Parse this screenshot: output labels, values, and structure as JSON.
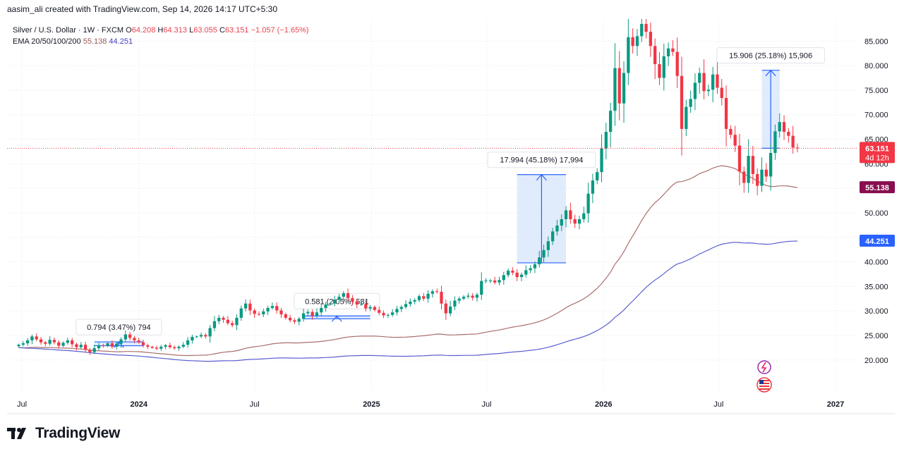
{
  "header": {
    "text": "aasim_ali created with TradingView.com, Sep 14, 2026 14:17 UTC+5:30"
  },
  "legend": {
    "symbol": "Silver / U.S. Dollar · 1W · FXCM",
    "o_label": "O",
    "o_value": "64.208",
    "h_label": "H",
    "h_value": "64.313",
    "l_label": "L",
    "l_value": "63.055",
    "c_label": "C",
    "c_value": "63.151",
    "change": "−1.057 (−1.65%)",
    "ema_label": "EMA 20/50/100/200",
    "ema_value_1": "55.138",
    "ema_value_2": "44.251"
  },
  "brand": {
    "name": "TradingView"
  },
  "colors": {
    "up": "#089981",
    "down": "#f23645",
    "ema1": "#a9706e",
    "ema2": "#5b5fd0",
    "measure_fill": "#dbe7fb",
    "measure_line": "#2962ff",
    "grid": "#eef0f3",
    "price_line": "#e8424f"
  },
  "chart_data": {
    "type": "candlestick",
    "y_axis": {
      "range": [
        13.5,
        89.5
      ],
      "ticks": [
        "20.000",
        "25.000",
        "30.000",
        "35.000",
        "40.000",
        "45.000",
        "50.000",
        "55.000",
        "60.000",
        "65.000",
        "70.000",
        "75.000",
        "80.000",
        "85.000"
      ]
    },
    "x_axis": {
      "labels": [
        "Jul",
        "2024",
        "Jul",
        "2025",
        "Jul",
        "2026",
        "Jul",
        "2027"
      ],
      "label_dates": [
        "2023-07-01",
        "2024-01-01",
        "2024-07-01",
        "2025-01-01",
        "2025-07-01",
        "2026-01-01",
        "2026-07-01",
        "2027-01-01"
      ]
    },
    "price_badges": [
      {
        "label": "63.151",
        "sub": "4d 12h",
        "value": 63.151,
        "color": "#f23645"
      },
      {
        "label": "55.138",
        "value": 55.138,
        "color": "#880e4f"
      },
      {
        "label": "44.251",
        "value": 44.251,
        "color": "#2962ff"
      }
    ],
    "measures": [
      {
        "label": "0.794 (3.47%) 794",
        "from": [
          "2023-10-23",
          22.9
        ],
        "to": [
          "2024-01-08",
          23.69
        ]
      },
      {
        "label": "0.581 (2.05%) 581",
        "from": [
          "2024-09-16",
          28.4
        ],
        "to": [
          "2024-12-30",
          28.98
        ]
      },
      {
        "label": "17.994 (45.18%) 17,994",
        "from": [
          "2025-08-18",
          39.8
        ],
        "to": [
          "2025-11-03",
          57.79
        ]
      },
      {
        "label": "15.906 (25.18%) 15,906",
        "from": [
          "2026-09-07",
          63.15
        ],
        "to": [
          "2026-10-05",
          79.06
        ]
      }
    ],
    "series": [
      {
        "name": "Silver / U.S. Dollar",
        "type": "ohlc",
        "start_date": "2023-06-26",
        "interval": "1W",
        "closes": [
          23.1,
          23.4,
          24.0,
          24.8,
          24.2,
          23.6,
          23.3,
          24.1,
          23.6,
          22.9,
          23.5,
          24.0,
          23.2,
          22.6,
          23.1,
          22.1,
          21.6,
          22.4,
          23.0,
          22.9,
          23.4,
          22.7,
          23.3,
          24.2,
          25.2,
          24.5,
          24.0,
          23.6,
          23.0,
          22.7,
          22.5,
          22.3,
          22.7,
          23.0,
          22.6,
          22.4,
          22.7,
          23.1,
          24.0,
          24.7,
          24.8,
          25.1,
          24.8,
          26.5,
          27.9,
          28.6,
          28.2,
          27.5,
          27.1,
          28.6,
          30.5,
          31.5,
          30.1,
          29.4,
          29.3,
          29.9,
          30.6,
          31.0,
          30.1,
          29.3,
          28.6,
          28.1,
          27.8,
          28.4,
          29.5,
          29.8,
          29.0,
          29.7,
          30.6,
          31.3,
          31.5,
          32.3,
          32.9,
          33.6,
          32.6,
          31.9,
          31.3,
          31.4,
          30.5,
          30.8,
          30.2,
          29.6,
          29.1,
          29.2,
          29.7,
          30.4,
          30.8,
          31.4,
          31.9,
          32.2,
          33.0,
          32.5,
          33.5,
          34.0,
          33.9,
          31.5,
          29.5,
          30.9,
          32.1,
          32.5,
          32.9,
          33.1,
          32.7,
          33.3,
          36.1,
          36.2,
          36.2,
          35.8,
          36.3,
          37.3,
          38.2,
          37.8,
          36.9,
          37.4,
          38.3,
          38.7,
          39.5,
          40.9,
          42.4,
          44.2,
          46.2,
          47.4,
          48.7,
          50.5,
          48.7,
          47.8,
          48.7,
          49.9,
          53.9,
          56.6,
          58.3,
          63.1,
          66.5,
          70.8,
          79.5,
          72.3,
          78.5,
          85.8,
          84.0,
          86.0,
          88.5,
          86.9,
          84.0,
          80.3,
          77.5,
          81.9,
          83.5,
          82.8,
          77.9,
          67.1,
          71.6,
          73.2,
          76.5,
          78.5,
          74.8,
          75.1,
          78.2,
          75.5,
          73.4,
          67.1,
          65.9,
          63.7,
          58.4,
          56.1,
          61.6,
          57.9,
          55.5,
          58.8,
          57.4,
          62.2,
          66.6,
          68.5,
          66.5,
          65.7,
          63.3,
          63.15
        ]
      },
      {
        "name": "EMA 20/50/100/200 (line 1)",
        "type": "line",
        "last_value": 55.138
      },
      {
        "name": "EMA 20/50/100/200 (line 2)",
        "type": "line",
        "last_value": 44.251
      }
    ]
  }
}
